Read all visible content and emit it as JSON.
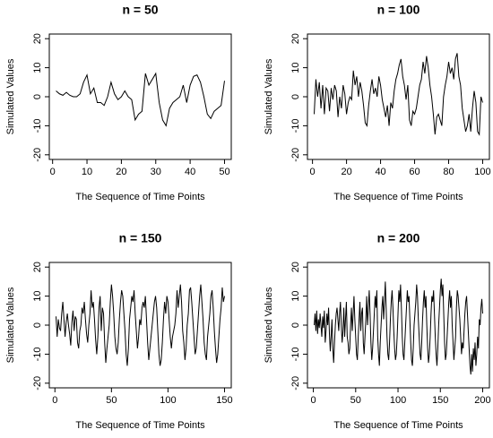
{
  "chart_data": [
    {
      "type": "line",
      "title": "n = 50",
      "xlabel": "The Sequence of Time Points",
      "ylabel": "Simulated Values",
      "color": "#000000",
      "xlim": [
        -0.96,
        51.96
      ],
      "ylim": [
        -21.6,
        21.6
      ],
      "xticks": [
        0,
        10,
        20,
        30,
        40,
        50
      ],
      "yticks": [
        -20,
        -10,
        0,
        10,
        20
      ],
      "values": [
        2,
        1,
        0.5,
        1.5,
        0.5,
        0,
        0,
        1,
        5,
        7.5,
        1,
        3,
        -2,
        -2,
        -3,
        0,
        5,
        1,
        -1,
        0,
        2,
        0,
        -1,
        -8,
        -6,
        -5,
        8,
        4,
        6,
        8,
        -2,
        -8,
        -10,
        -4,
        -2,
        -1,
        0,
        4,
        -2,
        4,
        7,
        7.5,
        5,
        0,
        -6,
        -7.5,
        -5,
        -4,
        -3,
        5.5
      ]
    },
    {
      "type": "line",
      "title": "n = 100",
      "xlabel": "The Sequence of Time Points",
      "ylabel": "Simulated Values",
      "color": "#000000",
      "xlim": [
        -2.96,
        103.96
      ],
      "ylim": [
        -21.6,
        21.6
      ],
      "xticks": [
        0,
        20,
        40,
        60,
        80,
        100
      ],
      "yticks": [
        -20,
        -10,
        0,
        10,
        20
      ],
      "values": [
        -6,
        6,
        0,
        5,
        -4,
        4,
        -6,
        3,
        2,
        -5,
        3,
        -1,
        4,
        2,
        -7,
        0,
        -4,
        4,
        1,
        -6,
        -2,
        0,
        -1,
        9,
        4,
        7,
        0,
        5,
        2,
        -3,
        -9,
        -10,
        -3,
        2,
        6,
        1,
        3,
        0,
        7,
        4,
        -1,
        -4,
        -7,
        -3,
        -10,
        -2,
        -4,
        2,
        6,
        8,
        11,
        13,
        7,
        4,
        -1,
        4,
        -8,
        -10,
        -5,
        -6,
        -4,
        0,
        4,
        6,
        12,
        8,
        14,
        10,
        4,
        0,
        -6,
        -13,
        -7,
        -6,
        -8,
        -10,
        0,
        4,
        7,
        12,
        8,
        10,
        6,
        13,
        15,
        7,
        4,
        -4,
        -8,
        -12,
        -10,
        -6,
        -12,
        -4,
        2,
        -2,
        -12,
        -13,
        0,
        -2
      ]
    },
    {
      "type": "line",
      "title": "n = 150",
      "xlabel": "The Sequence of Time Points",
      "ylabel": "Simulated Values",
      "color": "#000000",
      "xlim": [
        -4.96,
        155.96
      ],
      "ylim": [
        -21.6,
        21.6
      ],
      "xticks": [
        0,
        50,
        100,
        150
      ],
      "yticks": [
        -20,
        -10,
        0,
        10,
        20
      ],
      "values": [
        3,
        -4,
        2,
        -1,
        -2,
        4,
        8,
        2,
        -4,
        1,
        4,
        0,
        -3,
        -7,
        1,
        5,
        -2,
        3,
        2,
        -6,
        -8,
        -2,
        0,
        6,
        4,
        8,
        2,
        -3,
        -6,
        0,
        4,
        12,
        6,
        8,
        2,
        -5,
        -10,
        -4,
        6,
        10,
        -2,
        6,
        4,
        -6,
        -13,
        -8,
        -4,
        0,
        8,
        14,
        10,
        4,
        -4,
        -8,
        -10,
        -6,
        2,
        8,
        12,
        10,
        4,
        -2,
        -10,
        -14,
        -8,
        2,
        6,
        10,
        8,
        12,
        4,
        -2,
        -8,
        -4,
        2,
        0,
        6,
        8,
        6,
        10,
        2,
        -6,
        -12,
        -8,
        -4,
        0,
        4,
        8,
        10,
        6,
        -2,
        -10,
        -14,
        -12,
        -6,
        2,
        8,
        4,
        10,
        8,
        2,
        -4,
        -8,
        -4,
        -2,
        0,
        4,
        12,
        6,
        10,
        14,
        8,
        -2,
        -6,
        -12,
        -8,
        0,
        4,
        12,
        13,
        8,
        2,
        -4,
        -10,
        -8,
        -2,
        4,
        10,
        14,
        8,
        2,
        -6,
        -10,
        -12,
        -4,
        0,
        4,
        10,
        12,
        6,
        -2,
        -8,
        -13,
        -10,
        -4,
        2,
        6,
        13,
        8,
        10
      ]
    },
    {
      "type": "line",
      "title": "n = 200",
      "xlabel": "The Sequence of Time Points",
      "ylabel": "Simulated Values",
      "color": "#000000",
      "xlim": [
        -6.96,
        207.96
      ],
      "ylim": [
        -21.6,
        21.6
      ],
      "xticks": [
        0,
        50,
        100,
        150,
        200
      ],
      "yticks": [
        -20,
        -10,
        0,
        10,
        20
      ],
      "values": [
        0,
        4,
        -2,
        5,
        -3,
        2,
        -1,
        4,
        0,
        -4,
        3,
        -1,
        5,
        -6,
        -2,
        4,
        0,
        6,
        -3,
        -9,
        -4,
        2,
        -8,
        -13,
        -6,
        0,
        4,
        6,
        2,
        -2,
        4,
        8,
        0,
        -6,
        -2,
        6,
        -4,
        2,
        8,
        -4,
        -6,
        -10,
        -8,
        0,
        6,
        -2,
        4,
        10,
        2,
        -4,
        -10,
        -12,
        -4,
        2,
        8,
        -2,
        4,
        6,
        -6,
        -10,
        -4,
        2,
        10,
        0,
        6,
        12,
        4,
        -6,
        -12,
        -8,
        -2,
        4,
        10,
        6,
        12,
        -4,
        -10,
        -14,
        -6,
        0,
        6,
        10,
        2,
        8,
        15,
        6,
        -4,
        -10,
        -12,
        -6,
        2,
        8,
        12,
        6,
        -2,
        -8,
        -12,
        -10,
        -4,
        4,
        12,
        8,
        14,
        6,
        -4,
        -10,
        -12,
        -6,
        0,
        6,
        12,
        8,
        10,
        2,
        -6,
        -12,
        -14,
        -8,
        0,
        4,
        8,
        14,
        10,
        2,
        -4,
        -10,
        -12,
        -6,
        2,
        8,
        12,
        6,
        10,
        0,
        -8,
        -13,
        -10,
        -4,
        4,
        10,
        8,
        12,
        4,
        -4,
        -10,
        -14,
        -8,
        0,
        6,
        12,
        16,
        10,
        14,
        4,
        -6,
        -12,
        -10,
        -4,
        2,
        8,
        12,
        6,
        10,
        0,
        -6,
        -12,
        -8,
        -4,
        6,
        12,
        10,
        6,
        2,
        -4,
        -10,
        -6,
        -8,
        -2,
        4,
        8,
        10,
        4,
        -2,
        -8,
        -14,
        -17,
        -10,
        -16,
        -8,
        -12,
        -6,
        -14,
        -10,
        -4,
        -8,
        2,
        0,
        6,
        9,
        4
      ]
    }
  ]
}
